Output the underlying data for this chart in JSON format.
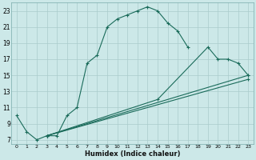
{
  "title": "",
  "xlabel": "Humidex (Indice chaleur)",
  "bg_color": "#cce8e8",
  "grid_color": "#aacccc",
  "line_color": "#1a6b5a",
  "xlim": [
    -0.5,
    23.5
  ],
  "ylim": [
    6.5,
    24.0
  ],
  "yticks": [
    7,
    9,
    11,
    13,
    15,
    17,
    19,
    21,
    23
  ],
  "xticks": [
    0,
    1,
    2,
    3,
    4,
    5,
    6,
    7,
    8,
    9,
    10,
    11,
    12,
    13,
    14,
    15,
    16,
    17,
    18,
    19,
    20,
    21,
    22,
    23
  ],
  "line1_x": [
    0,
    1,
    2,
    3,
    4,
    5,
    6,
    7,
    8,
    9,
    10,
    11,
    12,
    13,
    14,
    15,
    16,
    17
  ],
  "line1_y": [
    10,
    8,
    7,
    7.5,
    7.5,
    10,
    11,
    16.5,
    17.5,
    21,
    22,
    22.5,
    23,
    23.5,
    23,
    21.5,
    20.5,
    18.5
  ],
  "line2_x": [
    3,
    14,
    19,
    20,
    21,
    22,
    23
  ],
  "line2_y": [
    7.5,
    12.0,
    18.5,
    17.0,
    17.0,
    16.5,
    15.0
  ],
  "line3_x": [
    3,
    23
  ],
  "line3_y": [
    7.5,
    15.0
  ],
  "line4_x": [
    3,
    23
  ],
  "line4_y": [
    7.5,
    14.5
  ]
}
